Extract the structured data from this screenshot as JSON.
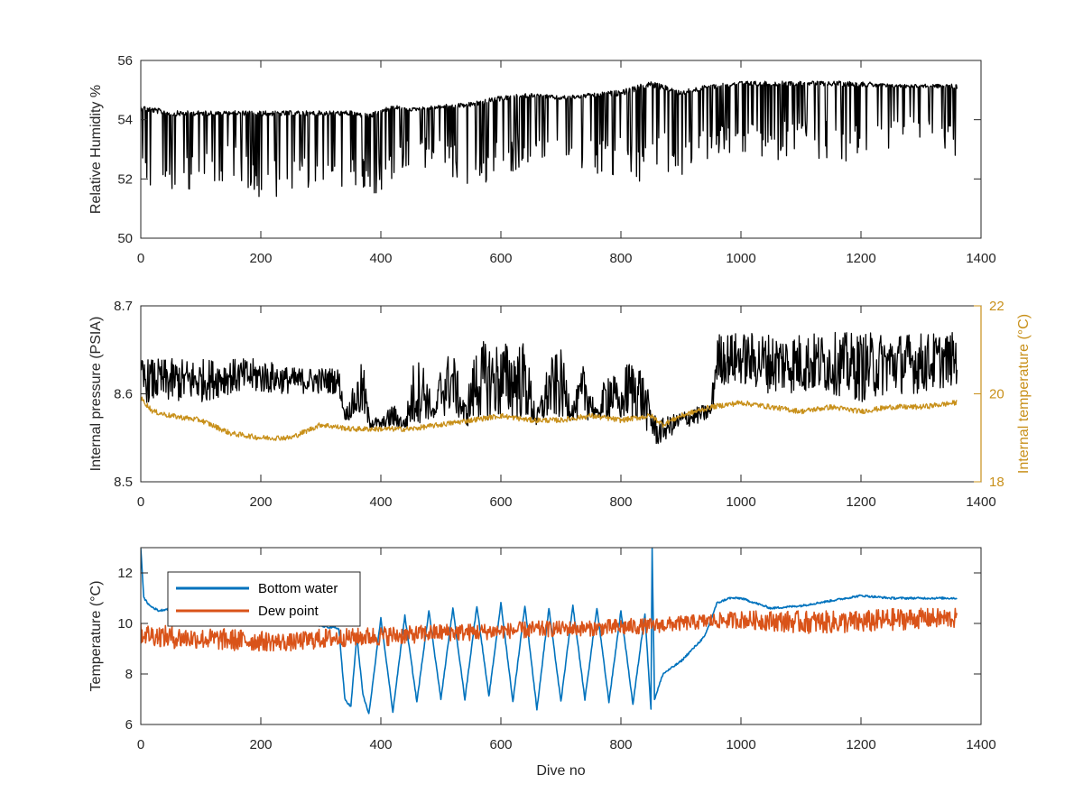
{
  "chart_data": [
    {
      "type": "line",
      "ylabel": "Relative Humidity %",
      "xlim": [
        0,
        1400
      ],
      "ylim": [
        50,
        56
      ],
      "xticks": [
        "0",
        "200",
        "400",
        "600",
        "800",
        "1000",
        "1200",
        "1400"
      ],
      "yticks": [
        "50",
        "52",
        "54",
        "56"
      ],
      "grid": false,
      "colors": {
        "series": "#000000"
      },
      "series": [
        {
          "name": "",
          "envelope": {
            "x": [
              0,
              50,
              100,
              150,
              200,
              250,
              300,
              350,
              380,
              420,
              450,
              500,
              550,
              600,
              650,
              700,
              750,
              800,
              850,
              900,
              950,
              1000,
              1050,
              1100,
              1150,
              1200,
              1250,
              1300,
              1360
            ],
            "high": [
              54.5,
              54.3,
              54.3,
              54.3,
              54.3,
              54.3,
              54.3,
              54.3,
              54.2,
              54.5,
              54.4,
              54.5,
              54.6,
              54.8,
              54.9,
              54.8,
              54.9,
              55.0,
              55.3,
              55.0,
              55.2,
              55.3,
              55.3,
              55.3,
              55.3,
              55.3,
              55.2,
              55.2,
              55.2
            ],
            "low": [
              51.3,
              51.3,
              51.6,
              52.0,
              51.3,
              51.5,
              51.5,
              51.6,
              51.2,
              52.0,
              52.5,
              52.2,
              51.6,
              52.0,
              52.6,
              52.5,
              52.3,
              51.8,
              52.0,
              52.0,
              52.6,
              52.8,
              52.6,
              52.8,
              52.6,
              52.3,
              53.0,
              53.3,
              52.4
            ]
          }
        }
      ]
    },
    {
      "type": "line",
      "ylabel": "Internal pressure (PSIA)",
      "y2label": "Internal temperature (°C)",
      "xlim": [
        0,
        1400
      ],
      "ylim": [
        8.5,
        8.7
      ],
      "y2lim": [
        18,
        22
      ],
      "xticks": [
        "0",
        "200",
        "400",
        "600",
        "800",
        "1000",
        "1200",
        "1400"
      ],
      "yticks": [
        "8.5",
        "8.6",
        "8.7"
      ],
      "y2ticks": [
        "18",
        "20",
        "22"
      ],
      "grid": false,
      "colors": {
        "pressure": "#000000",
        "temperature": "#c8901a"
      },
      "series": [
        {
          "name": "",
          "axis": "left",
          "envelope": {
            "x": [
              0,
              50,
              100,
              150,
              200,
              250,
              300,
              330,
              340,
              360,
              370,
              380,
              400,
              420,
              440,
              455,
              470,
              490,
              500,
              520,
              540,
              560,
              600,
              640,
              660,
              680,
              700,
              720,
              740,
              760,
              780,
              800,
              810,
              830,
              860,
              900,
              950,
              960,
              1000,
              1050,
              1100,
              1150,
              1200,
              1250,
              1300,
              1360
            ],
            "high": [
              8.64,
              8.64,
              8.64,
              8.64,
              8.64,
              8.63,
              8.63,
              8.63,
              8.58,
              8.62,
              8.64,
              8.58,
              8.57,
              8.59,
              8.57,
              8.64,
              8.64,
              8.58,
              8.64,
              8.65,
              8.59,
              8.66,
              8.66,
              8.66,
              8.58,
              8.64,
              8.65,
              8.59,
              8.64,
              8.58,
              8.64,
              8.6,
              8.64,
              8.64,
              8.57,
              8.58,
              8.59,
              8.67,
              8.67,
              8.67,
              8.67,
              8.67,
              8.67,
              8.67,
              8.67,
              8.67
            ],
            "low": [
              8.59,
              8.59,
              8.59,
              8.6,
              8.6,
              8.6,
              8.6,
              8.6,
              8.57,
              8.57,
              8.57,
              8.56,
              8.56,
              8.56,
              8.56,
              8.56,
              8.57,
              8.57,
              8.57,
              8.58,
              8.56,
              8.57,
              8.57,
              8.57,
              8.56,
              8.57,
              8.57,
              8.57,
              8.57,
              8.57,
              8.57,
              8.57,
              8.57,
              8.57,
              8.54,
              8.56,
              8.57,
              8.61,
              8.61,
              8.6,
              8.6,
              8.6,
              8.59,
              8.6,
              8.6,
              8.61
            ]
          }
        },
        {
          "name": "",
          "axis": "right",
          "x": [
            0,
            20,
            50,
            100,
            150,
            200,
            250,
            300,
            350,
            400,
            450,
            500,
            550,
            600,
            650,
            700,
            750,
            800,
            850,
            870,
            900,
            950,
            1000,
            1050,
            1100,
            1150,
            1200,
            1250,
            1300,
            1360
          ],
          "y": [
            19.9,
            19.6,
            19.5,
            19.4,
            19.1,
            19.0,
            19.0,
            19.3,
            19.2,
            19.2,
            19.2,
            19.3,
            19.4,
            19.5,
            19.4,
            19.4,
            19.5,
            19.4,
            19.5,
            19.3,
            19.5,
            19.7,
            19.8,
            19.7,
            19.6,
            19.7,
            19.6,
            19.7,
            19.7,
            19.8
          ]
        }
      ]
    },
    {
      "type": "line",
      "ylabel": "Temperature (°C)",
      "xlabel": "Dive no",
      "xlim": [
        0,
        1400
      ],
      "ylim": [
        6,
        13
      ],
      "xticks": [
        "0",
        "200",
        "400",
        "600",
        "800",
        "1000",
        "1200",
        "1400"
      ],
      "yticks": [
        "6",
        "8",
        "10",
        "12"
      ],
      "grid": false,
      "legend": "top-left",
      "series": [
        {
          "name": "Bottom water",
          "color": "#0072bd",
          "x": [
            0,
            5,
            15,
            30,
            50,
            100,
            200,
            300,
            330,
            340,
            350,
            360,
            370,
            380,
            400,
            420,
            440,
            460,
            480,
            500,
            520,
            540,
            560,
            580,
            600,
            620,
            640,
            660,
            680,
            700,
            720,
            740,
            760,
            780,
            800,
            820,
            840,
            850,
            852,
            856,
            870,
            900,
            940,
            960,
            980,
            1000,
            1050,
            1100,
            1150,
            1200,
            1250,
            1300,
            1360
          ],
          "y": [
            13.0,
            11.0,
            10.7,
            10.5,
            10.6,
            10.3,
            10.1,
            9.9,
            9.8,
            7.0,
            6.7,
            9.5,
            7.2,
            6.4,
            10.2,
            6.5,
            10.3,
            6.9,
            10.5,
            7.0,
            10.6,
            7.0,
            10.7,
            7.1,
            10.8,
            6.9,
            10.7,
            6.6,
            10.6,
            6.9,
            10.7,
            7.0,
            10.6,
            6.9,
            10.5,
            6.8,
            10.4,
            6.6,
            13.0,
            7.0,
            8.0,
            8.5,
            9.5,
            10.8,
            11.0,
            11.0,
            10.6,
            10.7,
            10.9,
            11.1,
            11.0,
            11.0,
            11.0
          ]
        },
        {
          "name": "Dew point",
          "color": "#d95319",
          "envelope": {
            "x": [
              0,
              50,
              100,
              150,
              200,
              250,
              300,
              350,
              400,
              450,
              500,
              550,
              600,
              650,
              700,
              750,
              800,
              850,
              900,
              950,
              1000,
              1050,
              1100,
              1150,
              1200,
              1250,
              1300,
              1360
            ],
            "high": [
              10.0,
              9.9,
              9.8,
              9.8,
              9.7,
              9.6,
              9.8,
              9.8,
              9.9,
              9.9,
              10.0,
              10.0,
              10.0,
              10.1,
              10.1,
              10.1,
              10.2,
              10.2,
              10.3,
              10.4,
              10.5,
              10.5,
              10.5,
              10.5,
              10.5,
              10.6,
              10.6,
              10.6
            ],
            "low": [
              9.2,
              9.0,
              9.0,
              8.9,
              8.9,
              8.9,
              9.0,
              9.1,
              9.1,
              9.2,
              9.3,
              9.3,
              9.4,
              9.4,
              9.5,
              9.5,
              9.5,
              9.6,
              9.7,
              9.8,
              9.8,
              9.7,
              9.6,
              9.6,
              9.6,
              9.7,
              9.8,
              9.8
            ]
          }
        }
      ]
    }
  ]
}
